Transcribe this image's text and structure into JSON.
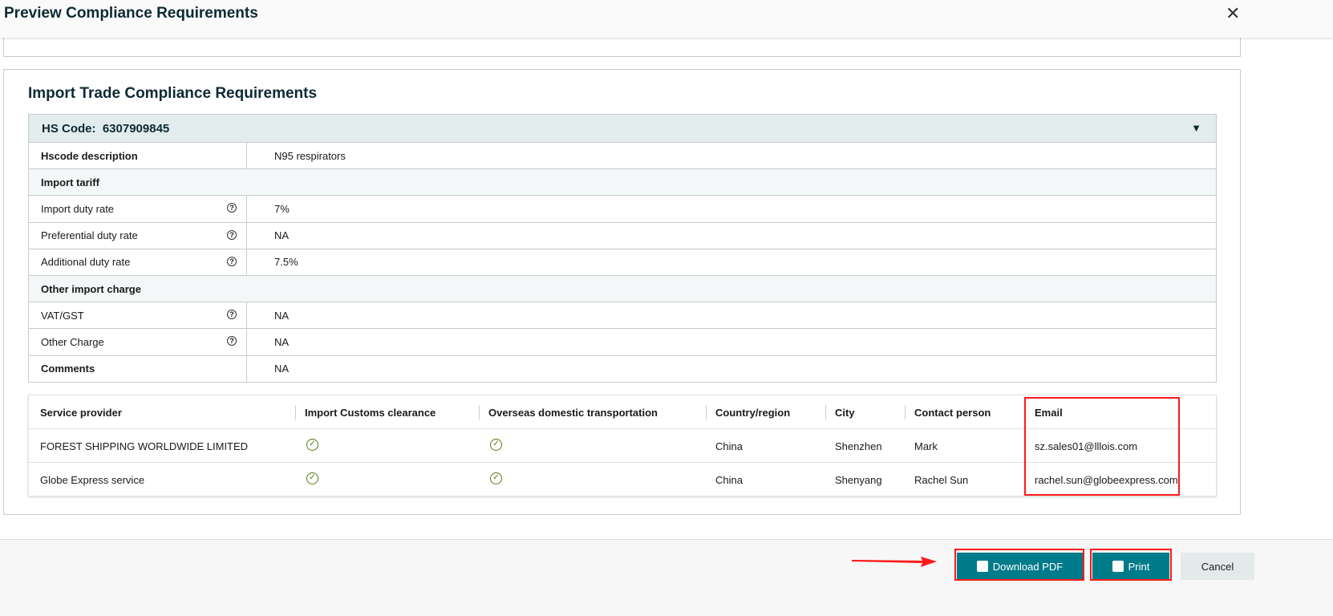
{
  "dialog": {
    "title": "Preview Compliance Requirements"
  },
  "section": {
    "title": "Import Trade Compliance Requirements"
  },
  "hs": {
    "label": "HS Code:",
    "code": "6307909845",
    "rows": [
      {
        "type": "bold",
        "key": "Hscode description",
        "value": "N95 respirators"
      },
      {
        "type": "section",
        "key": "Import tariff"
      },
      {
        "type": "help",
        "key": "Import duty rate",
        "value": "7%"
      },
      {
        "type": "help",
        "key": "Preferential duty rate",
        "value": "NA"
      },
      {
        "type": "help",
        "key": "Additional duty rate",
        "value": "7.5%"
      },
      {
        "type": "section",
        "key": "Other import charge"
      },
      {
        "type": "help",
        "key": "VAT/GST",
        "value": "NA"
      },
      {
        "type": "help",
        "key": "Other Charge",
        "value": "NA"
      },
      {
        "type": "bold",
        "key": "Comments",
        "value": "NA"
      }
    ]
  },
  "providers": {
    "columns": [
      "Service provider",
      "Import Customs clearance",
      "Overseas domestic transportation",
      "Country/region",
      "City",
      "Contact person",
      "Email"
    ],
    "rows": [
      {
        "name": "FOREST SHIPPING WORLDWIDE LIMITED",
        "customs": true,
        "transport": true,
        "country": "China",
        "city": "Shenzhen",
        "contact": "Mark",
        "email": "sz.sales01@lllois.com"
      },
      {
        "name": "Globe Express service",
        "customs": true,
        "transport": true,
        "country": "China",
        "city": "Shenyang",
        "contact": "Rachel Sun",
        "email": "rachel.sun@globeexpress.com"
      }
    ]
  },
  "footer": {
    "download": "Download PDF",
    "print": "Print",
    "cancel": "Cancel"
  },
  "colors": {
    "accent": "#007b8a",
    "annotation": "#ff1a1a",
    "check": "#5a7a12"
  }
}
